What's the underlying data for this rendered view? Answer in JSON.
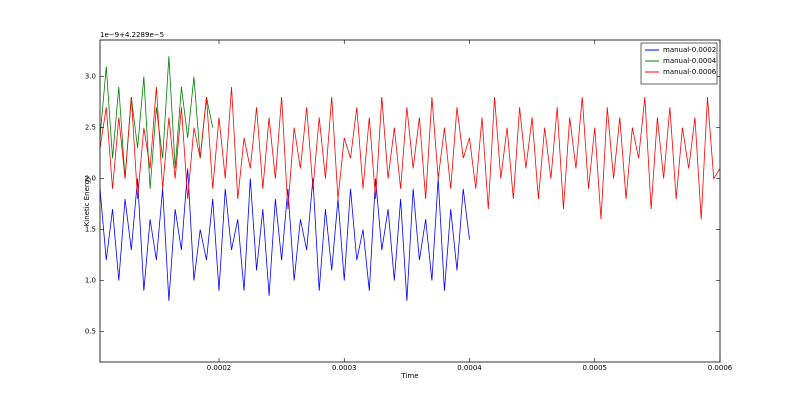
{
  "chart_data": {
    "type": "line",
    "x_label": "Time",
    "y_label": "Kinetic Energy",
    "y_offset_label": "1e−9+4.2289e−5",
    "x": [
      0.000105,
      0.00011,
      0.000115,
      0.00012,
      0.000125,
      0.00013,
      0.000135,
      0.00014,
      0.000145,
      0.00015,
      0.000155,
      0.00016,
      0.000165,
      0.00017,
      0.000175,
      0.00018,
      0.000185,
      0.00019,
      0.000195,
      0.0002,
      0.000205,
      0.00021,
      0.000215,
      0.00022,
      0.000225,
      0.00023,
      0.000235,
      0.00024,
      0.000245,
      0.00025,
      0.000255,
      0.00026,
      0.000265,
      0.00027,
      0.000275,
      0.00028,
      0.000285,
      0.00029,
      0.000295,
      0.0003,
      0.000305,
      0.00031,
      0.000315,
      0.00032,
      0.000325,
      0.00033,
      0.000335,
      0.00034,
      0.000345,
      0.00035,
      0.000355,
      0.00036,
      0.000365,
      0.00037,
      0.000375,
      0.00038,
      0.000385,
      0.00039,
      0.000395,
      0.0004,
      0.000405,
      0.00041,
      0.000415,
      0.00042,
      0.000425,
      0.00043,
      0.000435,
      0.00044,
      0.000445,
      0.00045,
      0.000455,
      0.00046,
      0.000465,
      0.00047,
      0.000475,
      0.00048,
      0.000485,
      0.00049,
      0.000495,
      0.0005,
      0.000505,
      0.00051,
      0.000515,
      0.00052,
      0.000525,
      0.00053,
      0.000535,
      0.00054,
      0.000545,
      0.00055,
      0.000555,
      0.00056,
      0.000565,
      0.00057,
      0.000575,
      0.00058,
      0.000585,
      0.00059,
      0.000595,
      0.0006
    ],
    "series": [
      {
        "name": "manual-0.0002",
        "color": "#0000ff",
        "values": [
          1.9,
          1.2,
          1.7,
          1.0,
          1.8,
          1.3,
          2.0,
          0.9,
          1.6,
          1.2,
          1.9,
          0.8,
          1.7,
          1.3,
          2.1,
          1.0,
          1.5,
          1.2,
          1.8,
          0.9,
          1.9,
          1.3,
          1.6,
          0.9,
          2.0,
          1.1,
          1.7,
          0.85,
          1.8,
          1.2,
          1.9,
          1.0,
          1.6,
          1.3,
          2.0,
          0.9,
          1.7,
          1.1,
          1.8,
          1.0,
          1.9,
          1.2,
          1.5,
          0.9,
          2.0,
          1.3,
          1.7,
          1.0,
          1.8,
          0.8,
          1.9,
          1.2,
          1.6,
          1.0,
          2.0,
          0.9,
          1.7,
          1.1,
          1.9,
          1.4,
          null,
          null,
          null,
          null,
          null,
          null,
          null,
          null,
          null,
          null,
          null,
          null,
          null,
          null,
          null,
          null,
          null,
          null,
          null,
          null,
          null,
          null,
          null,
          null,
          null,
          null,
          null,
          null,
          null,
          null,
          null,
          null,
          null,
          null,
          null,
          null,
          null,
          null,
          null,
          null
        ]
      },
      {
        "name": "manual-0.0004",
        "color": "#008000",
        "values": [
          2.4,
          3.1,
          2.2,
          2.9,
          2.0,
          2.8,
          2.3,
          3.0,
          1.9,
          2.7,
          2.2,
          3.2,
          2.1,
          2.9,
          2.4,
          3.0,
          2.2,
          2.8,
          2.5,
          null,
          null,
          null,
          null,
          null,
          null,
          null,
          null,
          null,
          null,
          null,
          null,
          null,
          null,
          null,
          null,
          null,
          null,
          null,
          null,
          null,
          null,
          null,
          null,
          null,
          null,
          null,
          null,
          null,
          null,
          null,
          null,
          null,
          null,
          null,
          null,
          null,
          null,
          null,
          null,
          null,
          null,
          null,
          null,
          null,
          null,
          null,
          null,
          null,
          null,
          null,
          null,
          null,
          null,
          null,
          null,
          null,
          null,
          null,
          null,
          null,
          null,
          null,
          null,
          null,
          null,
          null,
          null,
          null,
          null,
          null,
          null,
          null,
          null,
          null,
          null,
          null,
          null,
          null,
          null,
          null
        ]
      },
      {
        "name": "manual-0.0006",
        "color": "#ff0000",
        "values": [
          2.3,
          2.7,
          1.9,
          2.6,
          2.0,
          2.8,
          1.8,
          2.5,
          2.1,
          2.9,
          1.9,
          2.6,
          2.0,
          2.7,
          1.8,
          2.5,
          2.2,
          2.8,
          1.9,
          2.6,
          2.0,
          2.9,
          1.8,
          2.4,
          2.1,
          2.7,
          1.9,
          2.6,
          2.0,
          2.8,
          1.7,
          2.5,
          2.1,
          2.7,
          1.9,
          2.6,
          2.0,
          2.8,
          1.8,
          2.4,
          2.2,
          2.7,
          1.9,
          2.6,
          1.8,
          2.8,
          2.0,
          2.5,
          1.9,
          2.7,
          2.1,
          2.6,
          1.8,
          2.8,
          2.0,
          2.5,
          1.9,
          2.7,
          2.2,
          2.4,
          1.9,
          2.6,
          1.7,
          2.8,
          2.0,
          2.5,
          1.8,
          2.7,
          2.1,
          2.6,
          1.8,
          2.5,
          2.0,
          2.7,
          1.7,
          2.6,
          2.1,
          2.8,
          1.9,
          2.5,
          1.6,
          2.7,
          2.0,
          2.6,
          1.8,
          2.5,
          2.2,
          2.8,
          1.7,
          2.6,
          2.0,
          2.7,
          1.8,
          2.5,
          2.1,
          2.6,
          1.6,
          2.8,
          2.0,
          2.1
        ]
      }
    ],
    "xlim": [
      0.000105,
      0.0006
    ],
    "ylim": [
      0.2,
      3.36
    ],
    "xticks": [
      0.0002,
      0.0003,
      0.0004,
      0.0005,
      0.0006
    ],
    "yticks": [
      0.5,
      {
        "value": 1,
        "label": "1.0"
      },
      1.5,
      {
        "value": 2,
        "label": "2.0"
      },
      2.5,
      {
        "value": 3,
        "label": "3.0"
      }
    ],
    "legend": "upper right"
  }
}
